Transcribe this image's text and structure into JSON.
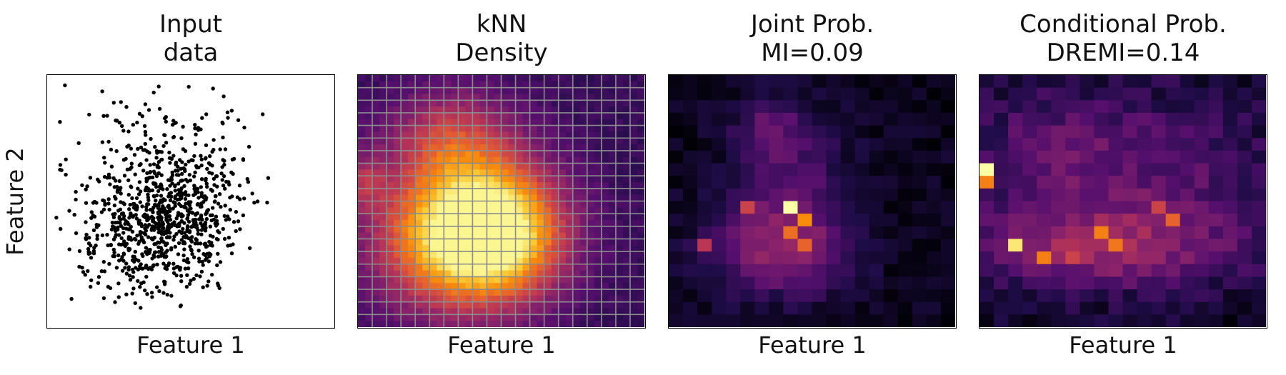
{
  "chart_data": [
    {
      "type": "scatter",
      "title": [
        "Input",
        "data"
      ],
      "xlabel": "Feature 1",
      "ylabel": "Feature 2",
      "point_count": 1000,
      "point_color": "#000000",
      "x_ticks_shown": false,
      "y_ticks_shown": false,
      "distribution": {
        "dense_cluster_center": [
          0.36,
          0.64
        ],
        "secondary_cluster_center": [
          0.48,
          0.48
        ],
        "x_range": [
          0.0,
          1.0
        ],
        "y_range": [
          0.0,
          1.0
        ]
      }
    },
    {
      "type": "heatmap",
      "title": [
        "kNN",
        "Density"
      ],
      "xlabel": "Feature 1",
      "colormap": "inferno",
      "grid": true,
      "grid_color": "#8c8c8c",
      "grid_bins": 20,
      "peak_regions": [
        [
          0.33,
          0.62
        ],
        [
          0.5,
          0.65
        ]
      ]
    },
    {
      "type": "heatmap",
      "title": [
        "Joint Prob.",
        "MI=0.09"
      ],
      "xlabel": "Feature 1",
      "colormap": "inferno",
      "bins": 20,
      "mutual_information": 0.09
    },
    {
      "type": "heatmap",
      "title": [
        "Conditional Prob.",
        "DREMI=0.14"
      ],
      "xlabel": "Feature 1",
      "colormap": "inferno",
      "bins": 20,
      "dremi": 0.14
    }
  ]
}
